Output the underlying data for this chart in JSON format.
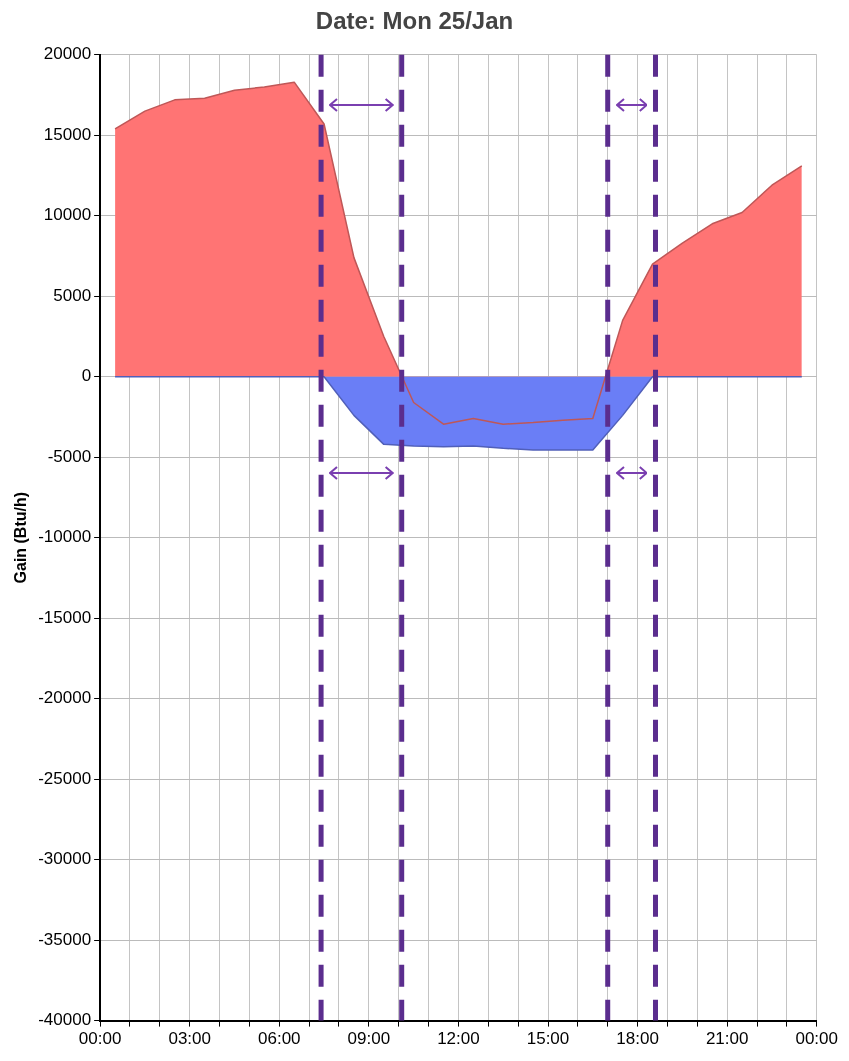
{
  "chart_data": {
    "type": "area",
    "title": "Date: Mon 25/Jan",
    "ylabel": "Gain (Btu/h)",
    "x": [
      0.5,
      1.5,
      2.5,
      3.5,
      4.5,
      5.5,
      6.5,
      7.5,
      8.5,
      9.5,
      10.5,
      11.5,
      12.5,
      13.5,
      14.5,
      15.5,
      16.5,
      17.5,
      18.5,
      19.5,
      20.5,
      21.5,
      22.5,
      23.5
    ],
    "series": [
      {
        "color": "#ff7474",
        "values": [
          15400,
          16500,
          17200,
          17300,
          17800,
          18000,
          18300,
          15700,
          7400,
          2500,
          -1600,
          -2950,
          -2600,
          -2950,
          -2850,
          -2700,
          -2600,
          3500,
          7000,
          8300,
          9500,
          10200,
          11900,
          13100
        ]
      },
      {
        "color": "#6a7ef6",
        "values": [
          0,
          0,
          0,
          0,
          0,
          0,
          0,
          0,
          -2400,
          -4200,
          -4300,
          -4350,
          -4300,
          -4450,
          -4550,
          -4550,
          -4550,
          -2400,
          0,
          0,
          0,
          0,
          0,
          0
        ]
      }
    ],
    "xlim": [
      0,
      24
    ],
    "xticks": [
      {
        "value": 0,
        "label": "00:00"
      },
      {
        "value": 1,
        "label": null
      },
      {
        "value": 2,
        "label": null
      },
      {
        "value": 3,
        "label": "03:00"
      },
      {
        "value": 4,
        "label": null
      },
      {
        "value": 5,
        "label": null
      },
      {
        "value": 6,
        "label": "06:00"
      },
      {
        "value": 7,
        "label": null
      },
      {
        "value": 8,
        "label": null
      },
      {
        "value": 9,
        "label": "09:00"
      },
      {
        "value": 10,
        "label": null
      },
      {
        "value": 11,
        "label": null
      },
      {
        "value": 12,
        "label": "12:00"
      },
      {
        "value": 13,
        "label": null
      },
      {
        "value": 14,
        "label": null
      },
      {
        "value": 15,
        "label": "15:00"
      },
      {
        "value": 16,
        "label": null
      },
      {
        "value": 17,
        "label": null
      },
      {
        "value": 18,
        "label": "18:00"
      },
      {
        "value": 19,
        "label": null
      },
      {
        "value": 20,
        "label": null
      },
      {
        "value": 21,
        "label": "21:00"
      },
      {
        "value": 22,
        "label": null
      },
      {
        "value": 23,
        "label": null
      },
      {
        "value": 24,
        "label": "00:00"
      }
    ],
    "ylim": [
      -40000,
      20000
    ],
    "yticks": [
      -40000,
      -35000,
      -30000,
      -25000,
      -20000,
      -15000,
      -10000,
      -5000,
      0,
      5000,
      10000,
      15000,
      20000
    ],
    "ref_lines": [
      {
        "axis": "x",
        "value": 7.4,
        "color": "#5b2d8e",
        "line_style": "dashed"
      },
      {
        "axis": "x",
        "value": 10.1,
        "color": "#5b2d8e",
        "line_style": "dashed"
      },
      {
        "axis": "x",
        "value": 17.0,
        "color": "#5b2d8e",
        "line_style": "dashed"
      },
      {
        "axis": "x",
        "value": 18.6,
        "color": "#5b2d8e",
        "line_style": "dashed"
      }
    ],
    "grid": true,
    "legend": false,
    "marker": "none",
    "line_style": "solid"
  }
}
